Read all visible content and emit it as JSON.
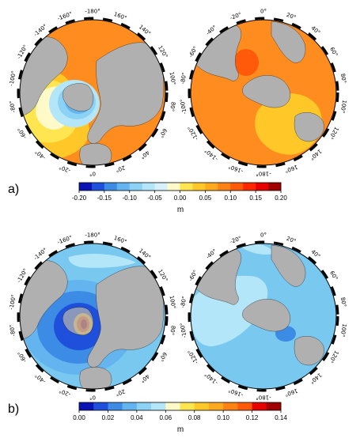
{
  "panels": [
    {
      "label": "a)",
      "unit": "m",
      "colorbar": {
        "ticks": [
          "-0.20",
          "-0.15",
          "-0.10",
          "-0.05",
          "0.00",
          "0.05",
          "0.10",
          "0.15",
          "0.20"
        ],
        "colors": [
          "#0a14b4",
          "#1e50dc",
          "#3c8ce6",
          "#64b4f0",
          "#8cd2f5",
          "#b4e6fa",
          "#d7f0fa",
          "#fffac8",
          "#ffe650",
          "#ffc828",
          "#ffaa1e",
          "#ff8214",
          "#ff5a0a",
          "#ff2800",
          "#e60000",
          "#a00000"
        ]
      },
      "maps": [
        {
          "name": "north",
          "ticks": [
            "-180°",
            "160°",
            "140°",
            "120°",
            "100°",
            "80°",
            "60°",
            "40°",
            "20°",
            "0°",
            "-20°",
            "-40°",
            "-60°",
            "-80°",
            "-100°",
            "-120°",
            "-140°",
            "-160°"
          ],
          "fill": "#ff8c1e",
          "features": [
            "near-field-low",
            "uplift-ring-yellow",
            "southern-warm"
          ]
        },
        {
          "name": "south",
          "ticks": [
            "0°",
            "20°",
            "40°",
            "60°",
            "80°",
            "100°",
            "120°",
            "140°",
            "160°",
            "-180°",
            "-160°",
            "-140°",
            "-120°",
            "-100°",
            "-80°",
            "-60°",
            "-40°",
            "-20°"
          ],
          "fill": "#ff8c1e",
          "features": [
            "peninsula-red",
            "pacific-yellow"
          ]
        }
      ]
    },
    {
      "label": "b)",
      "unit": "m",
      "colorbar": {
        "ticks": [
          "0.00",
          "0.02",
          "0.04",
          "0.06",
          "0.08",
          "0.10",
          "0.12",
          "0.14"
        ],
        "colors": [
          "#0a14b4",
          "#1e50dc",
          "#3c8ce6",
          "#64b4f0",
          "#8cd2f5",
          "#b4e6fa",
          "#fffac8",
          "#ffe650",
          "#ffc828",
          "#ffaa1e",
          "#ff8214",
          "#ff5a0a",
          "#e60000",
          "#a00000"
        ]
      },
      "maps": [
        {
          "name": "north",
          "ticks": [
            "-180°",
            "160°",
            "140°",
            "120°",
            "100°",
            "80°",
            "60°",
            "40°",
            "20°",
            "0°",
            "-20°",
            "-40°",
            "-60°",
            "-80°",
            "-100°",
            "-120°",
            "-140°",
            "-160°"
          ],
          "fill": "#78c8f0",
          "features": [
            "near-field-blue",
            "core-red"
          ]
        },
        {
          "name": "south",
          "ticks": [
            "0°",
            "20°",
            "40°",
            "60°",
            "80°",
            "100°",
            "120°",
            "140°",
            "160°",
            "-180°",
            "-160°",
            "-140°",
            "-120°",
            "-100°",
            "-80°",
            "-60°",
            "-40°",
            "-20°"
          ],
          "fill": "#78c8f0",
          "features": [
            "light-zone",
            "ocean-dark-spot"
          ]
        }
      ]
    }
  ]
}
